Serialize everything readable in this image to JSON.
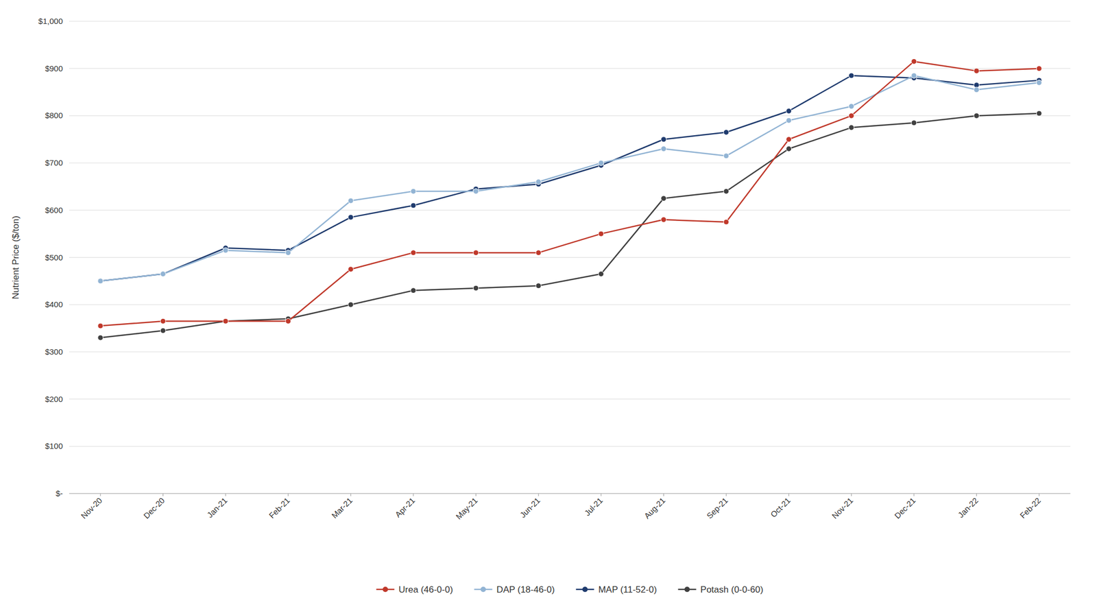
{
  "chart_data": {
    "type": "line",
    "y_label": "Nutrient Price ($/ton)",
    "categories": [
      "Nov-20",
      "Dec-20",
      "Jan-21",
      "Feb-21",
      "Mar-21",
      "Apr-21",
      "May-21",
      "Jun-21",
      "Jul-21",
      "Aug-21",
      "Sep-21",
      "Oct-21",
      "Nov-21",
      "Dec-21",
      "Jan-22",
      "Feb-22"
    ],
    "series": [
      {
        "name": "Urea (46-0-0)",
        "color": "#c0392b",
        "values": [
          355,
          365,
          365,
          365,
          475,
          510,
          510,
          510,
          550,
          580,
          575,
          750,
          800,
          915,
          895,
          900
        ]
      },
      {
        "name": "DAP (18-46-0)",
        "color": "#92b4d4",
        "values": [
          450,
          465,
          515,
          510,
          620,
          640,
          640,
          660,
          700,
          730,
          715,
          790,
          820,
          885,
          855,
          870
        ]
      },
      {
        "name": "MAP (11-52-0)",
        "color": "#1f3b6e",
        "values": [
          450,
          465,
          520,
          515,
          585,
          610,
          645,
          655,
          695,
          750,
          765,
          810,
          885,
          880,
          865,
          875
        ]
      },
      {
        "name": "Potash (0-0-60)",
        "color": "#404040",
        "values": [
          330,
          345,
          365,
          370,
          400,
          430,
          435,
          440,
          465,
          625,
          640,
          730,
          775,
          785,
          800,
          805
        ]
      }
    ],
    "marker": "circle",
    "ylim": [
      0,
      1000
    ],
    "yticks": [
      {
        "value": 0,
        "label": "$-"
      },
      {
        "value": 100,
        "label": "$100"
      },
      {
        "value": 200,
        "label": "$200"
      },
      {
        "value": 300,
        "label": "$300"
      },
      {
        "value": 400,
        "label": "$400"
      },
      {
        "value": 500,
        "label": "$500"
      },
      {
        "value": 600,
        "label": "$600"
      },
      {
        "value": 700,
        "label": "$700"
      },
      {
        "value": 800,
        "label": "$800"
      },
      {
        "value": 900,
        "label": "$900"
      },
      {
        "value": 1000,
        "label": "$1,000"
      }
    ],
    "grid": true,
    "legend": "bottom"
  }
}
